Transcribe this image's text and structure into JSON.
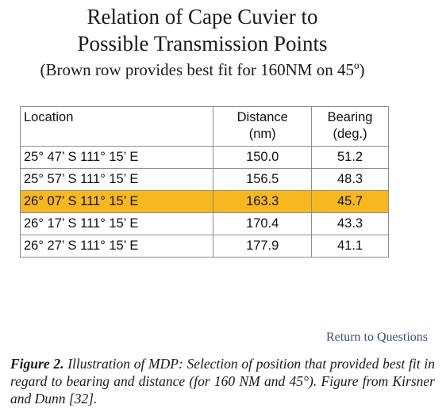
{
  "header": {
    "title_line1": "Relation of Cape Cuvier to",
    "title_line2": "Possible Transmission Points",
    "subtitle": "(Brown row provides best fit for 160NM on 45º)"
  },
  "table": {
    "columns": [
      {
        "label": "Location"
      },
      {
        "label_line1": "Distance",
        "label_line2": "(nm)"
      },
      {
        "label_line1": "Bearing",
        "label_line2": "(deg.)"
      }
    ],
    "rows": [
      {
        "location": "25° 47’ S 111° 15’ E",
        "distance": "150.0",
        "bearing": "51.2"
      },
      {
        "location": "25° 57’ S 111° 15’ E",
        "distance": "156.5",
        "bearing": "48.3"
      },
      {
        "location": "26° 07’ S 111° 15’ E",
        "distance": "163.3",
        "bearing": "45.7"
      },
      {
        "location": "26° 17’ S 111° 15’ E",
        "distance": "170.4",
        "bearing": "43.3"
      },
      {
        "location": "26° 27’ S 111° 15’ E",
        "distance": "177.9",
        "bearing": "41.1"
      }
    ],
    "highlight_color": "#f7b81f"
  },
  "link": {
    "return_label": "Return to Questions",
    "color": "#3c4f7c"
  },
  "caption": {
    "label": "Figure 2.",
    "text": " Illustration of MDP: Selection of position that provided best fit in regard to bearing and distance (for 160 NM and 45°). Figure from Kirsner and Dunn [32]."
  }
}
